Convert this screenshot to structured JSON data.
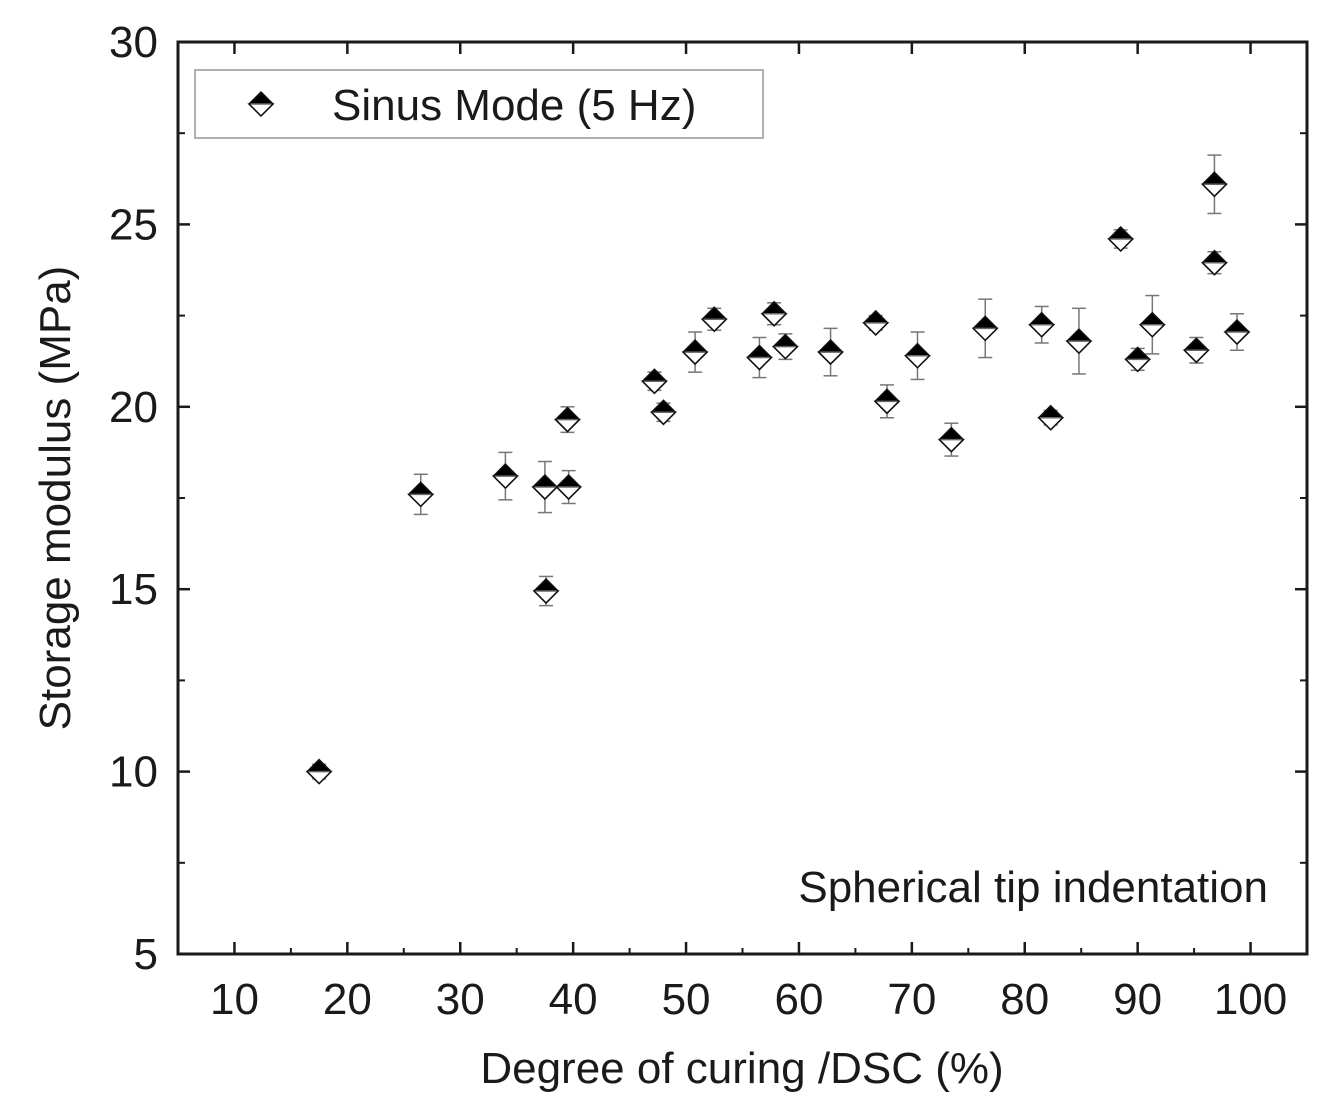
{
  "chart_data": {
    "type": "scatter",
    "title": "",
    "xlabel": "Degree of curing /DSC (%)",
    "ylabel": "Storage modulus (MPa)",
    "xlim": [
      5,
      105
    ],
    "ylim": [
      5,
      30
    ],
    "xticks": [
      10,
      20,
      30,
      40,
      50,
      60,
      70,
      80,
      90,
      100
    ],
    "yticks": [
      5,
      10,
      15,
      20,
      25,
      30
    ],
    "xtick_labels": [
      "10",
      "20",
      "30",
      "40",
      "50",
      "60",
      "70",
      "80",
      "90",
      "100"
    ],
    "ytick_labels": [
      "5",
      "10",
      "15",
      "20",
      "25",
      "30"
    ],
    "grid": false,
    "legend": {
      "position": "top-left",
      "entries": [
        "Sinus Mode (5 Hz)"
      ]
    },
    "annotation": "Spherical tip indentation",
    "series": [
      {
        "name": "Sinus Mode (5 Hz)",
        "marker": "half-filled-diamond",
        "points": [
          {
            "x": 17.5,
            "y": 10.0,
            "err": 0.2
          },
          {
            "x": 26.5,
            "y": 17.6,
            "err": 0.55
          },
          {
            "x": 34.0,
            "y": 18.1,
            "err": 0.65
          },
          {
            "x": 37.5,
            "y": 17.8,
            "err": 0.7
          },
          {
            "x": 37.6,
            "y": 14.95,
            "err": 0.4
          },
          {
            "x": 39.5,
            "y": 19.65,
            "err": 0.35
          },
          {
            "x": 39.6,
            "y": 17.8,
            "err": 0.45
          },
          {
            "x": 47.2,
            "y": 20.7,
            "err": 0.25
          },
          {
            "x": 48.0,
            "y": 19.85,
            "err": 0.25
          },
          {
            "x": 50.8,
            "y": 21.5,
            "err": 0.55
          },
          {
            "x": 52.5,
            "y": 22.4,
            "err": 0.3
          },
          {
            "x": 56.5,
            "y": 21.35,
            "err": 0.55
          },
          {
            "x": 57.8,
            "y": 22.55,
            "err": 0.3
          },
          {
            "x": 58.8,
            "y": 21.65,
            "err": 0.35
          },
          {
            "x": 62.8,
            "y": 21.5,
            "err": 0.65
          },
          {
            "x": 66.8,
            "y": 22.3,
            "err": 0.2
          },
          {
            "x": 67.8,
            "y": 20.15,
            "err": 0.45
          },
          {
            "x": 70.5,
            "y": 21.4,
            "err": 0.65
          },
          {
            "x": 73.5,
            "y": 19.1,
            "err": 0.45
          },
          {
            "x": 76.5,
            "y": 22.15,
            "err": 0.8
          },
          {
            "x": 81.5,
            "y": 22.25,
            "err": 0.5
          },
          {
            "x": 82.3,
            "y": 19.7,
            "err": 0.2
          },
          {
            "x": 84.8,
            "y": 21.8,
            "err": 0.9
          },
          {
            "x": 88.5,
            "y": 24.6,
            "err": 0.25
          },
          {
            "x": 90.0,
            "y": 21.3,
            "err": 0.3
          },
          {
            "x": 91.3,
            "y": 22.25,
            "err": 0.8
          },
          {
            "x": 95.2,
            "y": 21.55,
            "err": 0.35
          },
          {
            "x": 96.8,
            "y": 26.1,
            "err": 0.8
          },
          {
            "x": 96.8,
            "y": 23.95,
            "err": 0.3
          },
          {
            "x": 98.8,
            "y": 22.05,
            "err": 0.5
          }
        ]
      }
    ]
  }
}
